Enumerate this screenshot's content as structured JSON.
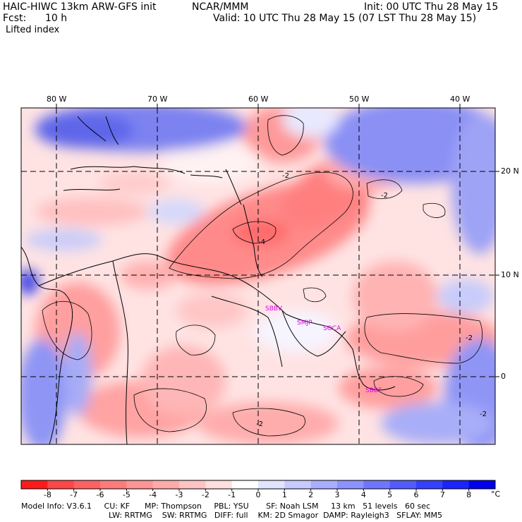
{
  "header": {
    "title_left": "HAIC-HIWC 13km ARW-GFS init",
    "org": "NCAR/MMM",
    "init": "Init: 00 UTC Thu 28 May 15",
    "fcst_label": "Fcst:",
    "fcst_value": "10 h",
    "valid": "Valid: 10 UTC Thu 28 May 15 (07 LST Thu 28 May 15)",
    "field": "Lifted index"
  },
  "axes": {
    "lon_labels": [
      "80 W",
      "70 W",
      "60 W",
      "50 W",
      "40 W"
    ],
    "lat_labels": [
      "20 N",
      "10 N",
      "0"
    ]
  },
  "stations": [
    "SBBV",
    "SMJP",
    "SOCA",
    "SBBE"
  ],
  "colorbar": {
    "ticks": [
      "-8",
      "-7",
      "-6",
      "-5",
      "-4",
      "-3",
      "-2",
      "-1",
      "0",
      "1",
      "2",
      "3",
      "4",
      "5",
      "6",
      "7",
      "8"
    ],
    "unit": "°C",
    "colors": [
      "#ff1a1a",
      "#ff4545",
      "#ff6161",
      "#ff7b7b",
      "#ff9494",
      "#ffaaaa",
      "#ffc3c3",
      "#ffdede",
      "#ffffff",
      "#e1e4ff",
      "#c6caff",
      "#a8adff",
      "#8c92ff",
      "#6e76ff",
      "#525bff",
      "#3640ff",
      "#1a24ff",
      "#0000ee"
    ]
  },
  "model_info": {
    "line1": "Model Info: V3.6.1     CU: KF      MP: Thompson     PBL: YSU       SF: Noah LSM     13 km   51 levels   60 sec",
    "line2": "LW: RRTMG    SW: RRTMG   DIFF: full    KM: 2D Smagor  DAMP: Rayleigh3   SFLAY: MM5"
  },
  "contour_labels": [
    "-4",
    "-2",
    "-2",
    "-2",
    "-2",
    "-2"
  ]
}
